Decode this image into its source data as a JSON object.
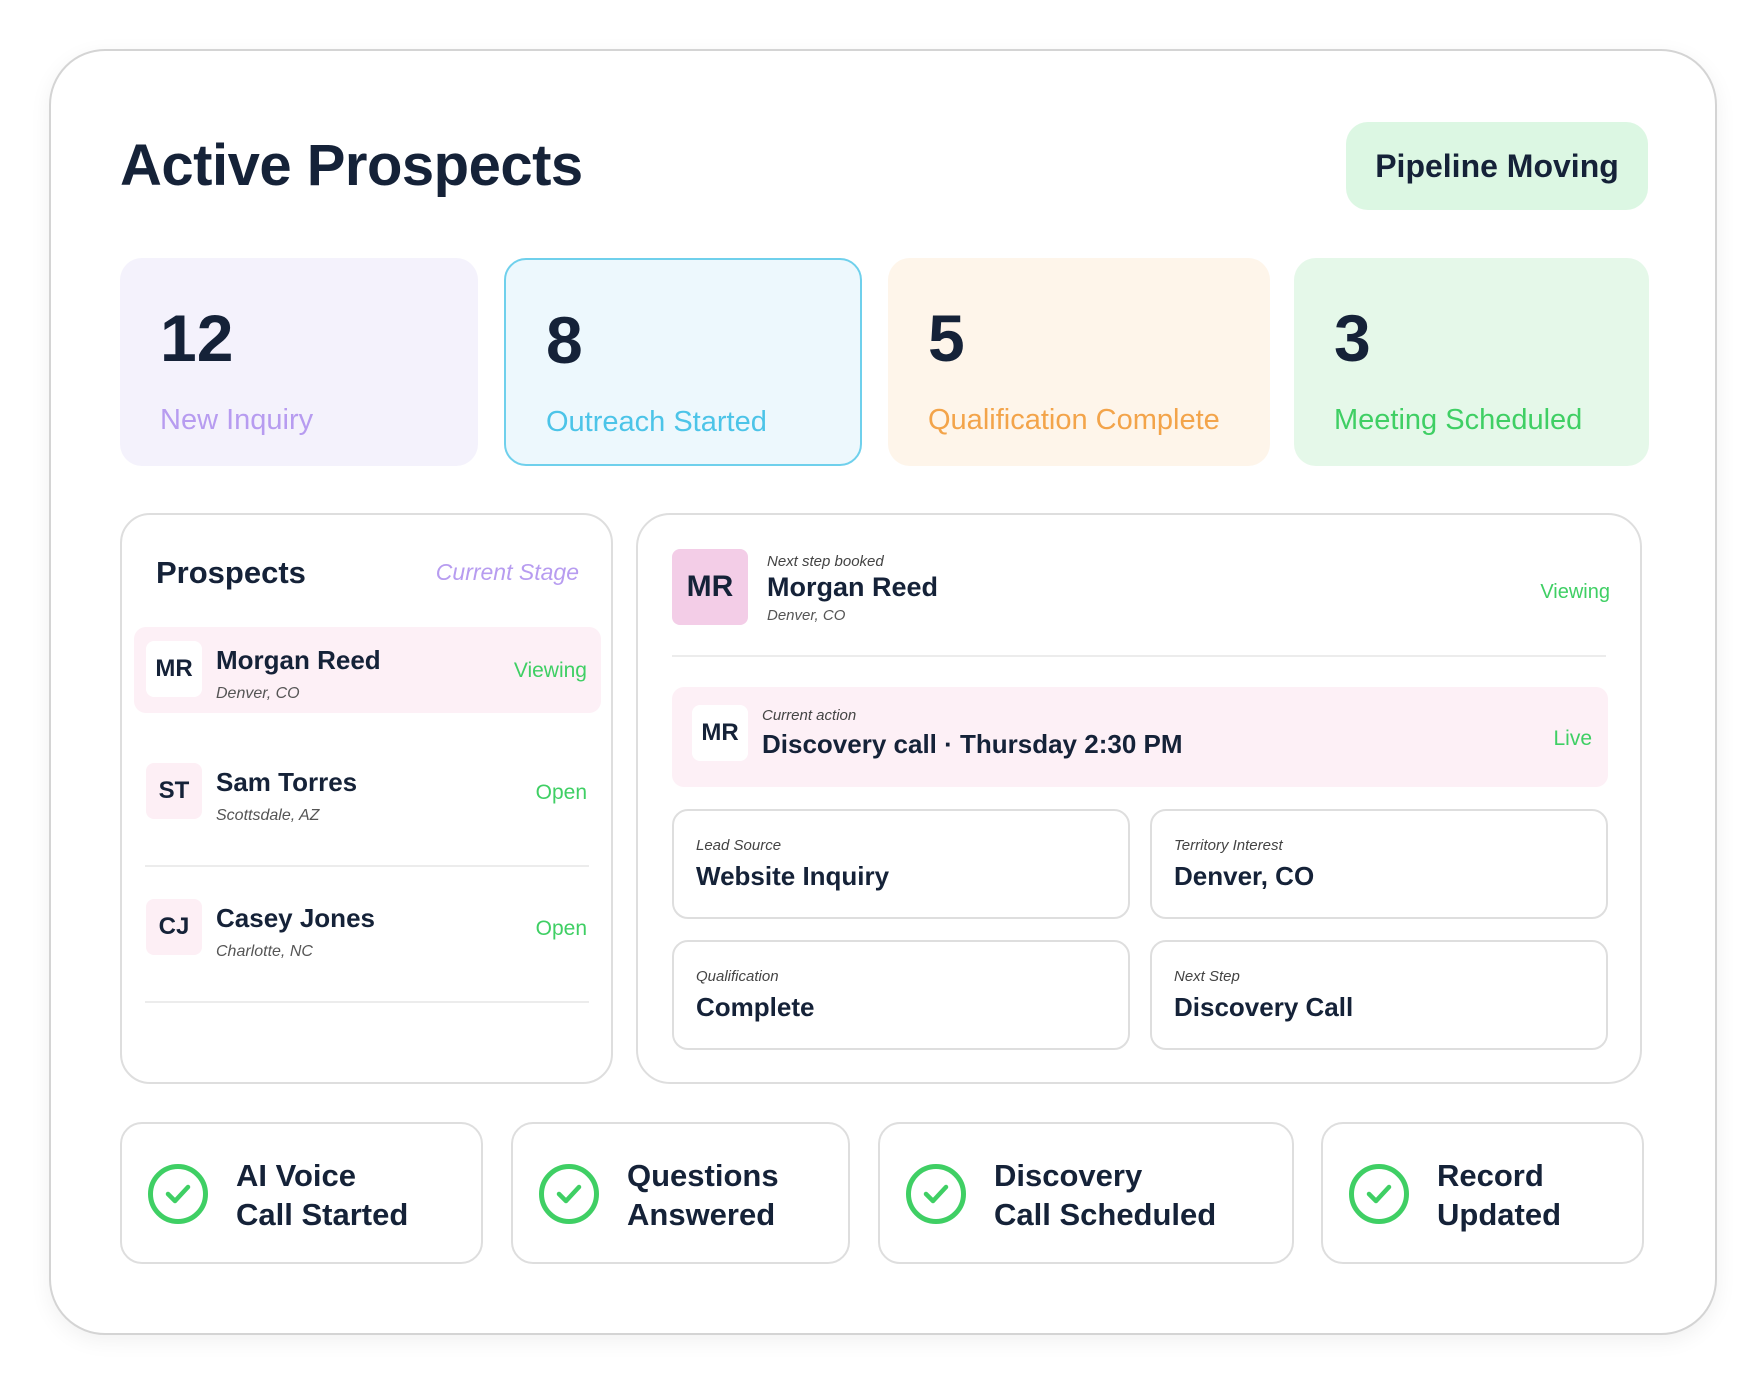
{
  "page_title": "Active Prospects",
  "status_pill": "Pipeline Moving",
  "stats": [
    {
      "value": "12",
      "label": "New Inquiry",
      "color": "#b79cf0"
    },
    {
      "value": "8",
      "label": "Outreach Started",
      "color": "#4cc4e8"
    },
    {
      "value": "5",
      "label": "Qualification Complete",
      "color": "#f3a44a"
    },
    {
      "value": "3",
      "label": "Meeting Scheduled",
      "color": "#3fcf64"
    }
  ],
  "prospects_panel": {
    "title": "Prospects",
    "column_label": "Current Stage",
    "rows": [
      {
        "initials": "MR",
        "name": "Morgan Reed",
        "location": "Denver, CO",
        "status": "Viewing"
      },
      {
        "initials": "ST",
        "name": "Sam Torres",
        "location": "Scottsdale, AZ",
        "status": "Open"
      },
      {
        "initials": "CJ",
        "name": "Casey Jones",
        "location": "Charlotte, NC",
        "status": "Open"
      }
    ]
  },
  "detail": {
    "initials": "MR",
    "eyebrow": "Next step booked",
    "name": "Morgan Reed",
    "location": "Denver, CO",
    "status": "Viewing",
    "action": {
      "initials": "MR",
      "eyebrow": "Current action",
      "title": "Discovery call · Thursday 2:30 PM",
      "status": "Live"
    },
    "fields": [
      {
        "label": "Lead Source",
        "value": "Website Inquiry"
      },
      {
        "label": "Territory Interest",
        "value": "Denver, CO"
      },
      {
        "label": "Qualification",
        "value": "Complete"
      },
      {
        "label": "Next Step",
        "value": "Discovery Call"
      }
    ]
  },
  "tasks": [
    {
      "label": "AI Voice\nCall Started",
      "icon": "check-circle-icon"
    },
    {
      "label": "Questions\nAnswered",
      "icon": "check-circle-icon"
    },
    {
      "label": "Discovery\nCall Scheduled",
      "icon": "check-circle-icon"
    },
    {
      "label": "Record\nUpdated",
      "icon": "check-circle-icon"
    }
  ],
  "colors": {
    "accent_green": "#3fcf64",
    "text_dark": "#152238",
    "highlight_pink": "#fdf0f6"
  }
}
